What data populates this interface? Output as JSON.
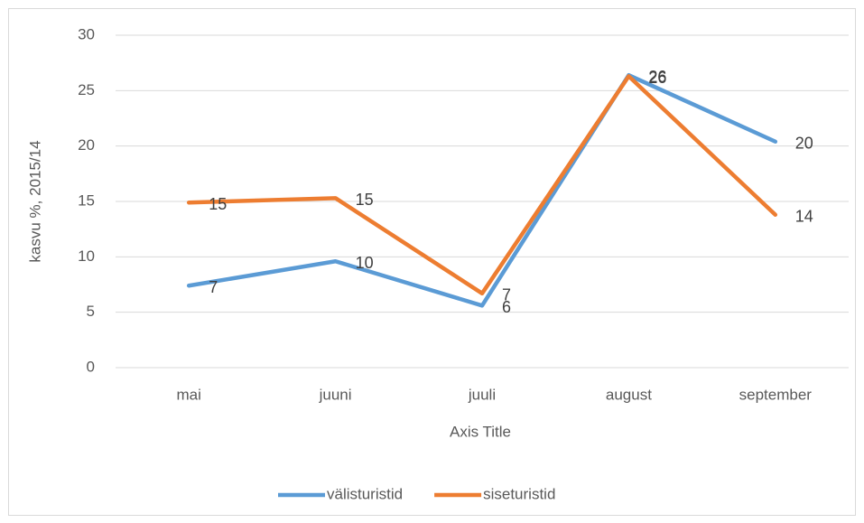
{
  "chart_data": {
    "type": "line",
    "categories": [
      "mai",
      "juuni",
      "juuli",
      "august",
      "september"
    ],
    "series": [
      {
        "name": "välisturistid",
        "color": "#5b9bd5",
        "values": [
          7.4,
          9.6,
          5.6,
          26.4,
          20.4
        ],
        "value_labels": [
          "7",
          "10",
          "6",
          "26",
          "20"
        ]
      },
      {
        "name": "siseturistid",
        "color": "#ed7d31",
        "values": [
          14.9,
          15.3,
          6.7,
          26.3,
          13.8
        ],
        "value_labels": [
          "15",
          "15",
          "7",
          "26",
          "14"
        ]
      }
    ],
    "ylabel": "kasvu %, 2015/14",
    "xlabel": "Axis Title",
    "ylim": [
      0,
      30
    ],
    "yticks": [
      0,
      5,
      10,
      15,
      20,
      25,
      30
    ],
    "grid": true,
    "legend": "bottom"
  }
}
